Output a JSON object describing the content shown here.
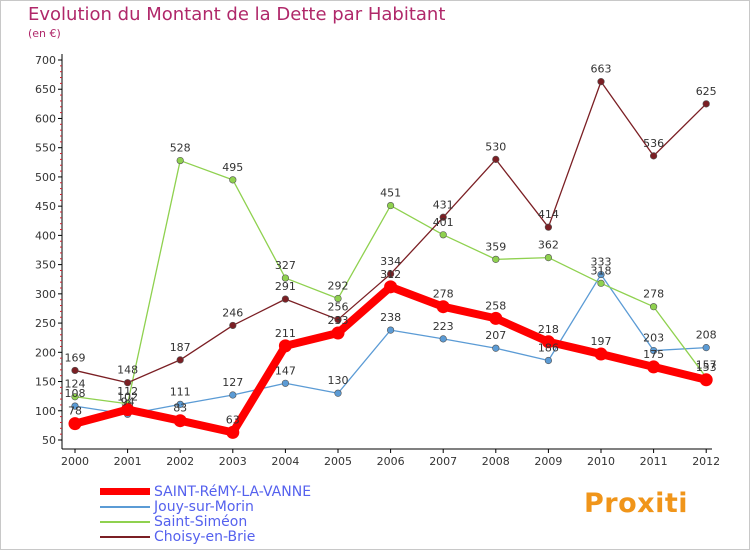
{
  "title": "Evolution du Montant de la Dette par Habitant",
  "subtitle": "(en €)",
  "logo": "Proxiti",
  "chart_data": {
    "type": "line",
    "x": [
      "2000",
      "2001",
      "2002",
      "2003",
      "2004",
      "2005",
      "2006",
      "2007",
      "2008",
      "2009",
      "2010",
      "2011",
      "2012"
    ],
    "yticks": [
      "700",
      "650",
      "600",
      "550",
      "500",
      "450",
      "400",
      "350",
      "300",
      "250",
      "200",
      "150",
      "100",
      "50"
    ],
    "ylim": [
      50,
      700
    ],
    "grid": false,
    "legend_position": "bottom-left",
    "series": [
      {
        "name": "SAINT-RéMY-LA-VANNE",
        "color": "#ff0000",
        "values": [
          78,
          102,
          83,
          63,
          211,
          233,
          312,
          278,
          258,
          218,
          197,
          175,
          153
        ],
        "labels": [
          "78",
          "102",
          "83",
          "63",
          "211",
          "233",
          "312",
          "278",
          "258",
          "218",
          "197",
          "175",
          "153"
        ]
      },
      {
        "name": "Jouy-sur-Morin",
        "color": "#5b9bd5",
        "values": [
          108,
          94,
          111,
          127,
          147,
          130,
          238,
          223,
          207,
          186,
          333,
          203,
          208
        ],
        "labels": [
          "108",
          "94",
          "111",
          "127",
          "147",
          "130",
          "238",
          "223",
          "207",
          "186",
          "333",
          "203",
          "208"
        ]
      },
      {
        "name": "Saint-Siméon",
        "color": "#8fd14f",
        "values": [
          124,
          112,
          528,
          495,
          327,
          292,
          451,
          401,
          359,
          362,
          318,
          278,
          157
        ],
        "labels": [
          "124",
          "112",
          "528",
          "495",
          "327",
          "292",
          "451",
          "401",
          "359",
          "362",
          "318",
          "278",
          "157"
        ]
      },
      {
        "name": "Choisy-en-Brie",
        "color": "#7b1f24",
        "values": [
          169,
          148,
          187,
          246,
          291,
          256,
          334,
          431,
          530,
          414,
          663,
          536,
          625
        ],
        "labels": [
          "169",
          "148",
          "187",
          "246",
          "291",
          "256",
          "334",
          "431",
          "530",
          "414",
          "663",
          "536",
          "625"
        ]
      }
    ]
  }
}
